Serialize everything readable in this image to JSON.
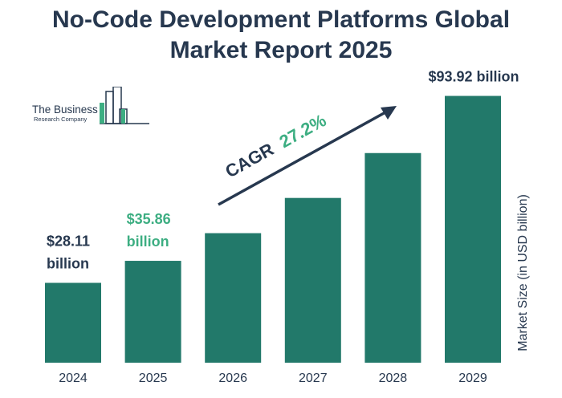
{
  "title_line1": "No-Code Development Platforms Global",
  "title_line2": "Market Report 2025",
  "logo": {
    "name": "The Business",
    "sub": "Research Company"
  },
  "cagr": {
    "label": "CAGR",
    "value": "27.2%"
  },
  "colors": {
    "bar": "#22796a",
    "text": "#27384f",
    "accent": "#3dae82"
  },
  "chart_data": {
    "type": "bar",
    "title": "No-Code Development Platforms Global Market Report 2025",
    "categories": [
      "2024",
      "2025",
      "2026",
      "2027",
      "2028",
      "2029"
    ],
    "values": [
      28.11,
      35.86,
      45.6,
      58.0,
      73.8,
      93.92
    ],
    "ylabel": "Market Size (in USD billion)",
    "ylim": [
      0,
      100
    ],
    "grid": false,
    "value_labels": [
      {
        "index": 0,
        "lines": [
          "$28.11",
          "billion"
        ],
        "accent": false
      },
      {
        "index": 1,
        "lines": [
          "$35.86",
          "billion"
        ],
        "accent": true
      },
      {
        "index": 5,
        "lines": [
          "$93.92 billion"
        ],
        "accent": false
      }
    ]
  }
}
